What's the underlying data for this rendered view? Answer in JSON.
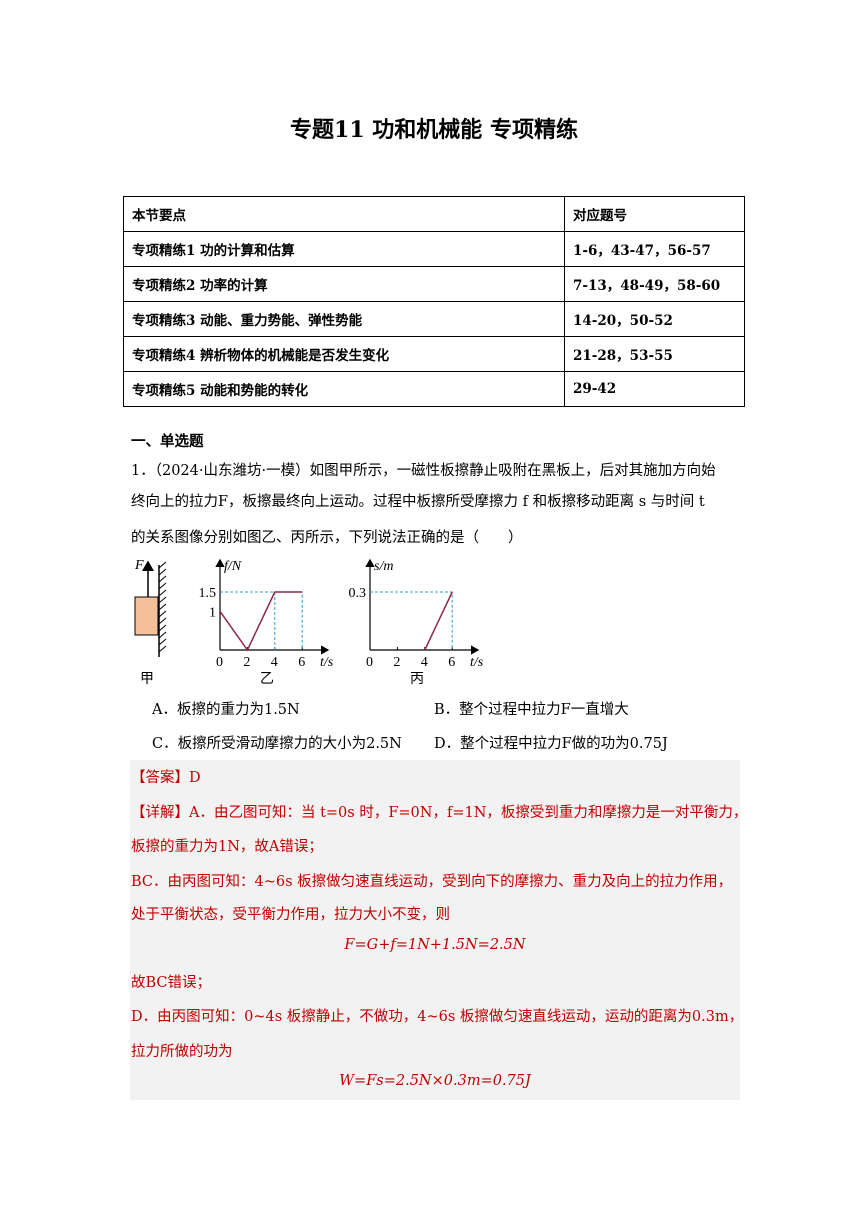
{
  "title": "专题11  功和机械能  专项精练",
  "table": {
    "headers": [
      "本节要点",
      "对应题号"
    ],
    "rows": [
      [
        "专项精练1 功的计算和估算",
        "1-6，43-47，56-57"
      ],
      [
        "专项精练2 功率的计算",
        "7-13，48-49，58-60"
      ],
      [
        "专项精练3 动能、重力势能、弹性势能",
        "14-20，50-52"
      ],
      [
        "专项精练4 辨析物体的机械能是否发生变化",
        "21-28，53-55"
      ],
      [
        "专项精练5 动能和势能的转化",
        "29-42"
      ]
    ]
  },
  "section": "一、单选题",
  "question": {
    "lines": [
      "1．（2024·山东潍坊·一模）如图甲所示，一磁性板擦静止吸附在黑板上，后对其施加方向始",
      "终向上的拉力F，板擦最终向上运动。过程中板擦所受摩擦力 f 和板擦移动距离 s 与时间 t",
      "的关系图像分别如图乙、丙所示，下列说法正确的是（　　）"
    ],
    "options": [
      "A．板擦的重力为1.5N",
      "B．整个过程中拉力F一直增大",
      "C．板擦所受滑动摩擦力的大小为2.5N",
      "D．整个过程中拉力F做的功为0.75J"
    ]
  },
  "figures": {
    "jia": {
      "force_label": "F",
      "caption": "甲",
      "block_color": "#f4c09a"
    },
    "yi": {
      "ylabel": "f/N",
      "xlabel": "t/s",
      "xticks": [
        "0",
        "2",
        "4",
        "6"
      ],
      "yticks": [
        "1.5",
        "1"
      ],
      "caption": "乙",
      "points": [
        [
          0,
          1
        ],
        [
          2,
          0
        ],
        [
          4,
          1.5
        ],
        [
          6,
          1.5
        ]
      ]
    },
    "bing": {
      "ylabel": "s/m",
      "xlabel": "t/s",
      "xticks": [
        "0",
        "2",
        "4",
        "6"
      ],
      "yticks": [
        "0.3"
      ],
      "caption": "丙",
      "points": [
        [
          4,
          0
        ],
        [
          6,
          0.3
        ]
      ]
    },
    "line_color": "#8b2a4a",
    "dash_color": "#2aa0c8"
  },
  "answer": {
    "label": "【答案】D",
    "lines": [
      "【详解】A．由乙图可知：当 t=0s 时，F=0N，f=1N，板擦受到重力和摩擦力是一对平衡力，",
      "板擦的重力为1N，故A错误；",
      "BC．由丙图可知：4~6s 板擦做匀速直线运动，受到向下的摩擦力、重力及向上的拉力作用，",
      "处于平衡状态，受平衡力作用，拉力大小不变，则",
      "F=G+f=1N+1.5N=2.5N",
      "故BC错误；",
      "D．由丙图可知：0~4s 板擦静止，不做功，4~6s 板擦做匀速直线运动，运动的距离为0.3m，",
      "拉力所做的功为",
      "W=Fs=2.5N×0.3m=0.75J"
    ]
  }
}
